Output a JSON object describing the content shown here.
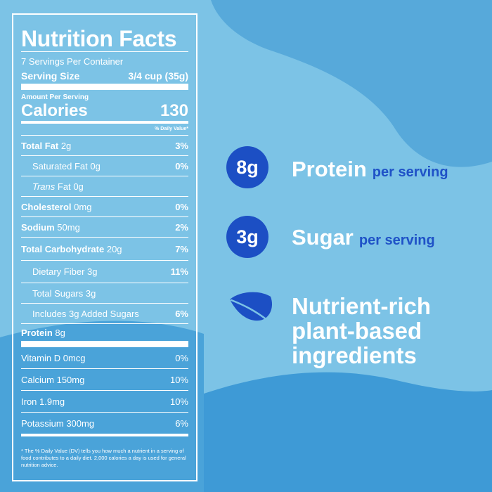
{
  "colors": {
    "lightblue": "#7cc3e6",
    "midblue": "#55a8d8",
    "deepblue": "#3b98d4",
    "accent": "#1c4fc4"
  },
  "label": {
    "title": "Nutrition Facts",
    "servings": "7 Servings Per Container",
    "serving_size_label": "Serving Size",
    "serving_size_value": "3/4 cup (35g)",
    "amount_per_serving": "Amount Per Serving",
    "calories_label": "Calories",
    "calories_value": "130",
    "dv_header": "% Daily Value*",
    "nutrients": [
      {
        "name": "Total Fat",
        "amount": "2g",
        "dv": "3%"
      },
      {
        "name": "Saturated Fat",
        "amount": "0g",
        "dv": "0%"
      },
      {
        "name": "Trans",
        "name_rest": "Fat",
        "amount": "0g",
        "dv": ""
      },
      {
        "name": "Cholesterol",
        "amount": "0mg",
        "dv": "0%"
      },
      {
        "name": "Sodium",
        "amount": "50mg",
        "dv": "2%"
      },
      {
        "name": "Total Carbohydrate",
        "amount": "20g",
        "dv": "7%"
      },
      {
        "name": "Dietary Fiber",
        "amount": "3g",
        "dv": "11%"
      },
      {
        "name": "Total Sugars",
        "amount": "3g",
        "dv": ""
      },
      {
        "name": "Includes 3g Added Sugars",
        "amount": "",
        "dv": "6%"
      },
      {
        "name": "Protein",
        "amount": "8g",
        "dv": ""
      }
    ],
    "vitamins": [
      {
        "name": "Vitamin D",
        "amount": "0mcg",
        "dv": "0%"
      },
      {
        "name": "Calcium",
        "amount": "150mg",
        "dv": "10%"
      },
      {
        "name": "Iron",
        "amount": "1.9mg",
        "dv": "10%"
      },
      {
        "name": "Potassium",
        "amount": "300mg",
        "dv": "6%"
      }
    ],
    "footnote": "* The % Daily Value (DV) tells you how much a nutrient in a serving of food contributes to a daily diet. 2,000 calories a day is used for general nutrition advice."
  },
  "claims": {
    "protein": {
      "value": "8g",
      "label": "Protein",
      "sub": "per serving"
    },
    "sugar": {
      "value": "3g",
      "label": "Sugar",
      "sub": "per serving"
    },
    "nutrient": {
      "icon": "leaf-icon",
      "line1": "Nutrient-rich",
      "line2": "plant-based",
      "line3": "ingredients"
    }
  }
}
